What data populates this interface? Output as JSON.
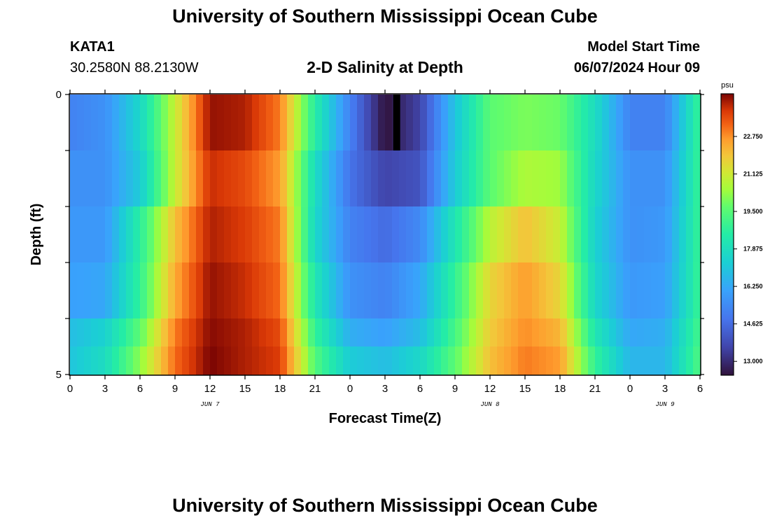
{
  "header": {
    "title": "University of Southern Mississippi Ocean Cube",
    "station": "KATA1",
    "coords": "30.2580N  88.2130W",
    "plot_title": "2-D Salinity at Depth",
    "model_label": "Model Start Time",
    "model_time": "06/07/2024 Hour 09"
  },
  "footer": {
    "title": "University of Southern Mississippi Ocean Cube"
  },
  "chart_data": {
    "type": "heatmap",
    "title": "2-D Salinity at Depth",
    "xlabel": "Forecast Time(Z)",
    "ylabel": "Depth (ft)",
    "x_ticks": [
      "0",
      "3",
      "6",
      "9",
      "12",
      "15",
      "18",
      "21",
      "0",
      "3",
      "6",
      "9",
      "12",
      "15",
      "18",
      "21",
      "0",
      "3",
      "6"
    ],
    "x_range_hours": [
      0,
      54
    ],
    "date_labels": [
      {
        "text": "JUN 7",
        "at_hour": 12
      },
      {
        "text": "JUN 8",
        "at_hour": 36
      },
      {
        "text": "JUN 9",
        "at_hour": 51
      }
    ],
    "y_ticks": [
      "0",
      "5"
    ],
    "ylim": [
      0,
      5
    ],
    "y_inverted": true,
    "colorbar": {
      "unit": "psu",
      "min": 12.4,
      "max": 24.6,
      "tick_labels": [
        "13.000",
        "14.625",
        "16.250",
        "17.875",
        "19.500",
        "21.125",
        "22.750"
      ]
    },
    "colormap_stops": [
      [
        0.0,
        "#30123b"
      ],
      [
        0.1,
        "#4145ab"
      ],
      [
        0.2,
        "#4675ed"
      ],
      [
        0.3,
        "#39a2fc"
      ],
      [
        0.4,
        "#1bcfd4"
      ],
      [
        0.5,
        "#24eca6"
      ],
      [
        0.6,
        "#61fc6c"
      ],
      [
        0.66,
        "#a4fc3b"
      ],
      [
        0.72,
        "#d1e834"
      ],
      [
        0.78,
        "#f3c63a"
      ],
      [
        0.84,
        "#fe9b2d"
      ],
      [
        0.89,
        "#f36315"
      ],
      [
        0.94,
        "#d93806"
      ],
      [
        1.0,
        "#7a0403"
      ]
    ],
    "depth_rows_ft": [
      0,
      1,
      2,
      3,
      4,
      5
    ],
    "time_hours": [
      0,
      3,
      6,
      9,
      12,
      15,
      18,
      21,
      24,
      27,
      30,
      33,
      36,
      39,
      42,
      45,
      48,
      51,
      54
    ],
    "salinity_psu": [
      [
        15.2,
        15.6,
        17.6,
        21.0,
        24.4,
        24.2,
        23.0,
        18.5,
        15.2,
        12.4,
        13.6,
        17.0,
        19.6,
        20.0,
        19.8,
        17.8,
        15.2,
        15.2,
        19.0
      ],
      [
        15.6,
        15.6,
        17.2,
        21.0,
        24.0,
        23.6,
        22.6,
        17.8,
        14.8,
        13.6,
        14.0,
        17.2,
        19.6,
        20.6,
        20.4,
        17.6,
        15.6,
        15.6,
        19.0
      ],
      [
        15.8,
        15.8,
        18.6,
        22.0,
        24.2,
        23.8,
        23.0,
        17.6,
        15.2,
        14.6,
        15.4,
        18.2,
        20.8,
        22.0,
        21.0,
        17.4,
        15.6,
        15.8,
        19.0
      ],
      [
        16.0,
        16.2,
        18.8,
        22.4,
        24.4,
        24.0,
        23.2,
        18.2,
        15.6,
        15.2,
        16.2,
        18.8,
        21.6,
        22.6,
        21.6,
        17.6,
        15.8,
        16.0,
        19.0
      ],
      [
        16.8,
        17.4,
        19.6,
        23.0,
        24.5,
        24.2,
        23.6,
        18.8,
        16.4,
        16.0,
        16.8,
        19.2,
        21.8,
        22.8,
        22.2,
        18.2,
        16.2,
        16.4,
        19.2
      ],
      [
        17.0,
        17.8,
        20.2,
        23.2,
        24.6,
        24.2,
        23.8,
        19.4,
        17.2,
        16.8,
        17.6,
        19.6,
        22.0,
        23.0,
        22.6,
        18.8,
        16.6,
        16.6,
        19.4
      ]
    ],
    "dark_marker": {
      "hour": 28,
      "label": ""
    }
  }
}
